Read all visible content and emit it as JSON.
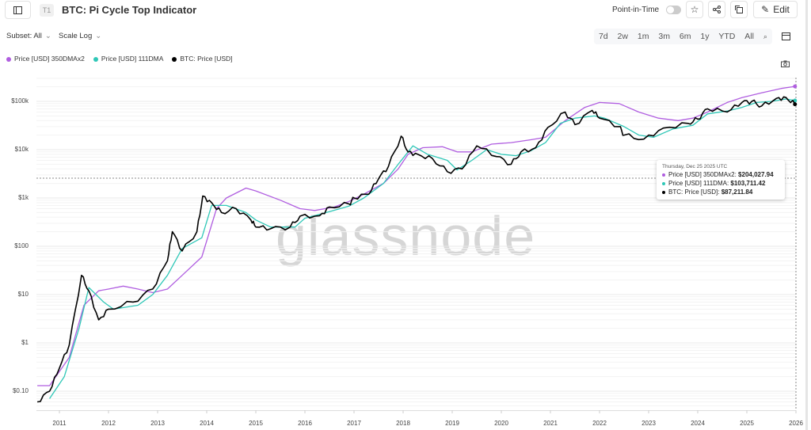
{
  "header": {
    "badge": "T1",
    "title": "BTC: Pi Cycle Top Indicator",
    "point_in_time": "Point-in-Time",
    "point_in_time_on": false,
    "edit": "Edit"
  },
  "controls": {
    "subset": "Subset: All",
    "scale": "Scale Log",
    "ranges": [
      "7d",
      "2w",
      "1m",
      "3m",
      "6m",
      "1y",
      "YTD",
      "All"
    ]
  },
  "legend": [
    {
      "name": "Price [USD] 350DMAx2",
      "color": "#b05ee0"
    },
    {
      "name": "Price [USD] 111DMA",
      "color": "#2fc7b7"
    },
    {
      "name": "BTC: Price [USD]",
      "color": "#000000"
    }
  ],
  "tooltip": {
    "date": "Thursday, Dec 25 2025 UTC",
    "rows": [
      {
        "label": "Price [USD] 350DMAx2:",
        "value": "$204,027.94",
        "color": "#b05ee0"
      },
      {
        "label": "Price [USD] 111DMA:",
        "value": "$103,711.42",
        "color": "#2fc7b7"
      },
      {
        "label": "BTC: Price [USD]:",
        "value": "$87,211.84",
        "color": "#000000"
      }
    ]
  },
  "watermark": "glassnode",
  "chart_data": {
    "type": "line",
    "yscale": "log",
    "ylim": [
      0.05,
      300000
    ],
    "xlim": [
      2010.55,
      2026.0
    ],
    "yticks": [
      {
        "v": 0.1,
        "label": "$0.10"
      },
      {
        "v": 1,
        "label": "$1"
      },
      {
        "v": 10,
        "label": "$10"
      },
      {
        "v": 100,
        "label": "$100"
      },
      {
        "v": 1000,
        "label": "$1k"
      },
      {
        "v": 10000,
        "label": "$10k"
      },
      {
        "v": 100000,
        "label": "$100k"
      }
    ],
    "xticks": [
      "2011",
      "2012",
      "2013",
      "2014",
      "2015",
      "2016",
      "2017",
      "2018",
      "2019",
      "2020",
      "2021",
      "2022",
      "2023",
      "2024",
      "2025",
      "2026"
    ],
    "grid": true,
    "legend_position": "top-left",
    "series": [
      {
        "name": "Price [USD] 350DMAx2",
        "color": "#b05ee0",
        "points": [
          [
            2010.55,
            0.13
          ],
          [
            2010.8,
            0.13
          ],
          [
            2011.2,
            0.5
          ],
          [
            2011.5,
            6
          ],
          [
            2011.8,
            12
          ],
          [
            2012.0,
            13
          ],
          [
            2012.3,
            15
          ],
          [
            2012.6,
            13
          ],
          [
            2012.9,
            11
          ],
          [
            2013.2,
            13
          ],
          [
            2013.5,
            25
          ],
          [
            2013.9,
            60
          ],
          [
            2014.2,
            600
          ],
          [
            2014.4,
            1000
          ],
          [
            2014.8,
            1600
          ],
          [
            2015.0,
            1400
          ],
          [
            2015.5,
            900
          ],
          [
            2015.9,
            600
          ],
          [
            2016.2,
            550
          ],
          [
            2016.6,
            650
          ],
          [
            2016.9,
            850
          ],
          [
            2017.2,
            1200
          ],
          [
            2017.6,
            2000
          ],
          [
            2017.9,
            4000
          ],
          [
            2018.1,
            8000
          ],
          [
            2018.4,
            11000
          ],
          [
            2018.8,
            11500
          ],
          [
            2019.1,
            9000
          ],
          [
            2019.4,
            9000
          ],
          [
            2019.8,
            13000
          ],
          [
            2020.2,
            14000
          ],
          [
            2020.6,
            16000
          ],
          [
            2020.9,
            18000
          ],
          [
            2021.3,
            40000
          ],
          [
            2021.7,
            75000
          ],
          [
            2022.0,
            95000
          ],
          [
            2022.4,
            90000
          ],
          [
            2022.8,
            60000
          ],
          [
            2023.2,
            45000
          ],
          [
            2023.6,
            40000
          ],
          [
            2023.9,
            45000
          ],
          [
            2024.2,
            60000
          ],
          [
            2024.6,
            95000
          ],
          [
            2024.9,
            120000
          ],
          [
            2025.3,
            150000
          ],
          [
            2025.7,
            185000
          ],
          [
            2025.98,
            204027.94
          ]
        ]
      },
      {
        "name": "Price [USD] 111DMA",
        "color": "#2fc7b7",
        "points": [
          [
            2010.8,
            0.07
          ],
          [
            2011.1,
            0.2
          ],
          [
            2011.4,
            2
          ],
          [
            2011.6,
            14
          ],
          [
            2011.9,
            7
          ],
          [
            2012.1,
            5
          ],
          [
            2012.6,
            6
          ],
          [
            2012.9,
            10
          ],
          [
            2013.2,
            25
          ],
          [
            2013.5,
            90
          ],
          [
            2013.9,
            150
          ],
          [
            2014.1,
            700
          ],
          [
            2014.4,
            700
          ],
          [
            2014.8,
            500
          ],
          [
            2015.0,
            350
          ],
          [
            2015.3,
            250
          ],
          [
            2015.8,
            250
          ],
          [
            2016.0,
            380
          ],
          [
            2016.5,
            520
          ],
          [
            2016.9,
            680
          ],
          [
            2017.2,
            1000
          ],
          [
            2017.6,
            2000
          ],
          [
            2017.9,
            5000
          ],
          [
            2018.2,
            12000
          ],
          [
            2018.5,
            8000
          ],
          [
            2018.9,
            6000
          ],
          [
            2019.1,
            3800
          ],
          [
            2019.4,
            6000
          ],
          [
            2019.7,
            10000
          ],
          [
            2020.0,
            8000
          ],
          [
            2020.3,
            7500
          ],
          [
            2020.6,
            9500
          ],
          [
            2020.9,
            14000
          ],
          [
            2021.2,
            35000
          ],
          [
            2021.5,
            45000
          ],
          [
            2021.9,
            50000
          ],
          [
            2022.1,
            45000
          ],
          [
            2022.5,
            30000
          ],
          [
            2022.8,
            20000
          ],
          [
            2023.1,
            18000
          ],
          [
            2023.5,
            27000
          ],
          [
            2023.9,
            32000
          ],
          [
            2024.2,
            55000
          ],
          [
            2024.6,
            63000
          ],
          [
            2024.9,
            75000
          ],
          [
            2025.2,
            95000
          ],
          [
            2025.5,
            100000
          ],
          [
            2025.8,
            112000
          ],
          [
            2025.98,
            103711.42
          ]
        ]
      },
      {
        "name": "BTC: Price [USD]",
        "color": "#000000",
        "points": [
          [
            2010.55,
            0.06
          ],
          [
            2010.8,
            0.1
          ],
          [
            2011.0,
            0.3
          ],
          [
            2011.2,
            0.9
          ],
          [
            2011.45,
            25
          ],
          [
            2011.6,
            12
          ],
          [
            2011.8,
            3
          ],
          [
            2012.0,
            5
          ],
          [
            2012.5,
            7
          ],
          [
            2012.9,
            13
          ],
          [
            2013.2,
            50
          ],
          [
            2013.3,
            200
          ],
          [
            2013.5,
            80
          ],
          [
            2013.8,
            200
          ],
          [
            2013.92,
            1100
          ],
          [
            2014.1,
            800
          ],
          [
            2014.3,
            500
          ],
          [
            2014.6,
            600
          ],
          [
            2014.9,
            350
          ],
          [
            2015.0,
            250
          ],
          [
            2015.3,
            230
          ],
          [
            2015.7,
            250
          ],
          [
            2015.9,
            420
          ],
          [
            2016.3,
            430
          ],
          [
            2016.5,
            650
          ],
          [
            2016.9,
            750
          ],
          [
            2017.0,
            1000
          ],
          [
            2017.3,
            1200
          ],
          [
            2017.5,
            2500
          ],
          [
            2017.7,
            4500
          ],
          [
            2017.96,
            19000
          ],
          [
            2018.1,
            9000
          ],
          [
            2018.3,
            8000
          ],
          [
            2018.6,
            6500
          ],
          [
            2018.9,
            3500
          ],
          [
            2019.2,
            4000
          ],
          [
            2019.5,
            12000
          ],
          [
            2019.9,
            7200
          ],
          [
            2020.2,
            5000
          ],
          [
            2020.4,
            9000
          ],
          [
            2020.7,
            11000
          ],
          [
            2020.95,
            29000
          ],
          [
            2021.3,
            60000
          ],
          [
            2021.5,
            33000
          ],
          [
            2021.85,
            65000
          ],
          [
            2022.0,
            45000
          ],
          [
            2022.4,
            30000
          ],
          [
            2022.5,
            20000
          ],
          [
            2022.9,
            16500
          ],
          [
            2023.3,
            28000
          ],
          [
            2023.8,
            35000
          ],
          [
            2024.0,
            43000
          ],
          [
            2024.2,
            70000
          ],
          [
            2024.6,
            60000
          ],
          [
            2024.9,
            95000
          ],
          [
            2025.1,
            100000
          ],
          [
            2025.3,
            80000
          ],
          [
            2025.6,
            115000
          ],
          [
            2025.8,
            120000
          ],
          [
            2025.98,
            87211.84
          ]
        ]
      }
    ]
  }
}
